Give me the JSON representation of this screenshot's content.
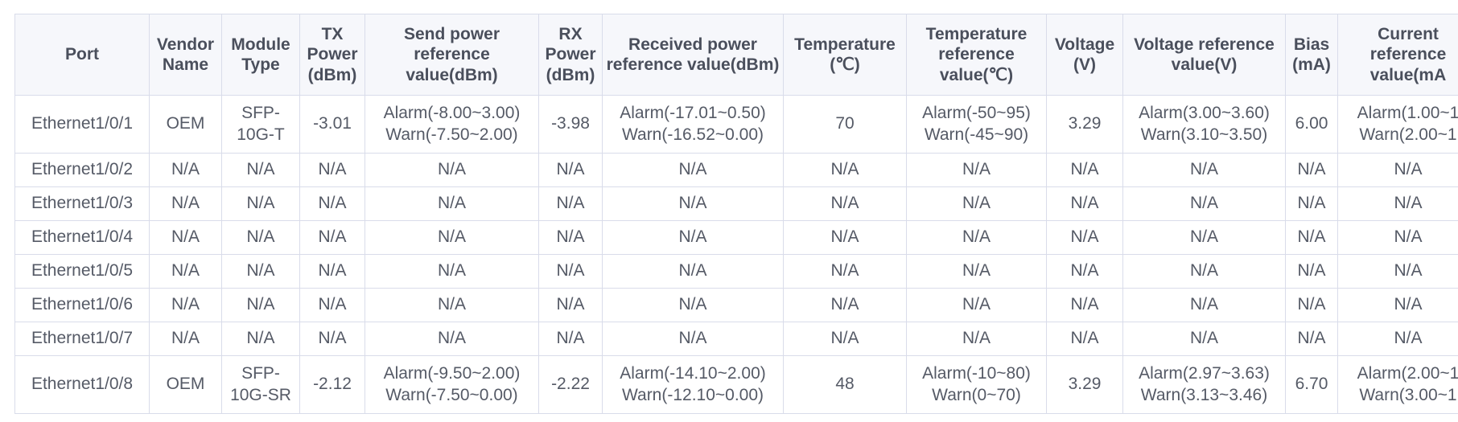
{
  "table": {
    "headers": [
      "Port",
      "Vendor Name",
      "Module Type",
      "TX Power (dBm)",
      "Send power reference value(dBm)",
      "RX Power (dBm)",
      "Received power reference value(dBm)",
      "Temperature (℃)",
      "Temperature reference value(℃)",
      "Voltage (V)",
      "Voltage reference value(V)",
      "Bias (mA)",
      "Current reference value(mA"
    ],
    "rows": [
      [
        "Ethernet1/0/1",
        "OEM",
        "SFP-10G-T",
        "-3.01",
        [
          "Alarm(-8.00~3.00)",
          "Warn(-7.50~2.00)"
        ],
        "-3.98",
        [
          "Alarm(-17.01~0.50)",
          "Warn(-16.52~0.00)"
        ],
        "70",
        [
          "Alarm(-50~95)",
          "Warn(-45~90)"
        ],
        "3.29",
        [
          "Alarm(3.00~3.60)",
          "Warn(3.10~3.50)"
        ],
        "6.00",
        [
          "Alarm(1.00~1",
          "Warn(2.00~1"
        ]
      ],
      [
        "Ethernet1/0/2",
        "N/A",
        "N/A",
        "N/A",
        "N/A",
        "N/A",
        "N/A",
        "N/A",
        "N/A",
        "N/A",
        "N/A",
        "N/A",
        "N/A"
      ],
      [
        "Ethernet1/0/3",
        "N/A",
        "N/A",
        "N/A",
        "N/A",
        "N/A",
        "N/A",
        "N/A",
        "N/A",
        "N/A",
        "N/A",
        "N/A",
        "N/A"
      ],
      [
        "Ethernet1/0/4",
        "N/A",
        "N/A",
        "N/A",
        "N/A",
        "N/A",
        "N/A",
        "N/A",
        "N/A",
        "N/A",
        "N/A",
        "N/A",
        "N/A"
      ],
      [
        "Ethernet1/0/5",
        "N/A",
        "N/A",
        "N/A",
        "N/A",
        "N/A",
        "N/A",
        "N/A",
        "N/A",
        "N/A",
        "N/A",
        "N/A",
        "N/A"
      ],
      [
        "Ethernet1/0/6",
        "N/A",
        "N/A",
        "N/A",
        "N/A",
        "N/A",
        "N/A",
        "N/A",
        "N/A",
        "N/A",
        "N/A",
        "N/A",
        "N/A"
      ],
      [
        "Ethernet1/0/7",
        "N/A",
        "N/A",
        "N/A",
        "N/A",
        "N/A",
        "N/A",
        "N/A",
        "N/A",
        "N/A",
        "N/A",
        "N/A",
        "N/A"
      ],
      [
        "Ethernet1/0/8",
        "OEM",
        "SFP-10G-SR",
        "-2.12",
        [
          "Alarm(-9.50~2.00)",
          "Warn(-7.50~0.00)"
        ],
        "-2.22",
        [
          "Alarm(-14.10~2.00)",
          "Warn(-12.10~0.00)"
        ],
        "48",
        [
          "Alarm(-10~80)",
          "Warn(0~70)"
        ],
        "3.29",
        [
          "Alarm(2.97~3.63)",
          "Warn(3.13~3.46)"
        ],
        "6.70",
        [
          "Alarm(2.00~1",
          "Warn(3.00~1"
        ]
      ]
    ]
  }
}
